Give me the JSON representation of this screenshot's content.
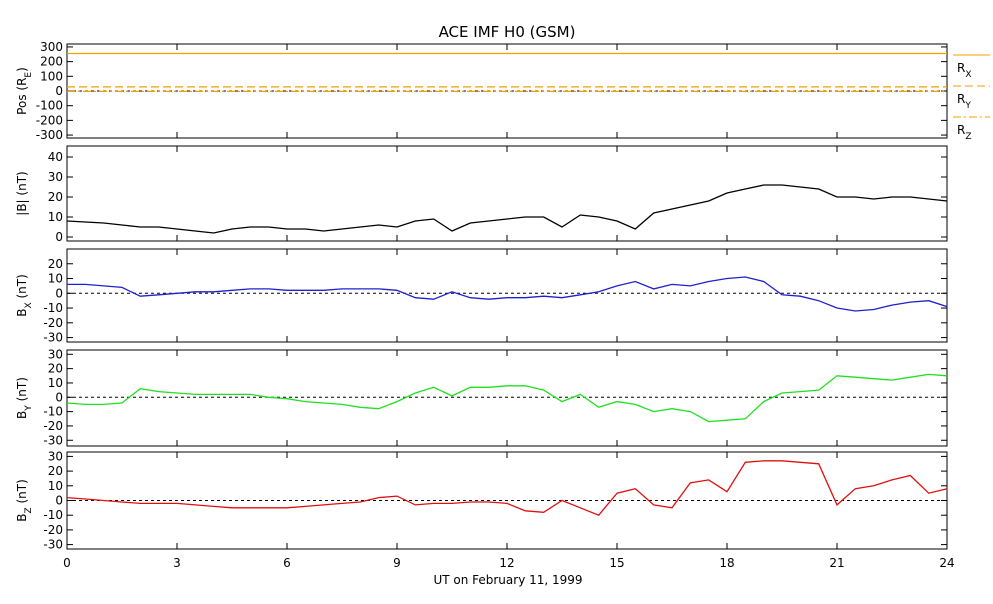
{
  "title": "ACE IMF H0 (GSM)",
  "xlabel": "UT on February 11, 1999",
  "chart_data": [
    {
      "type": "line",
      "ylabel": {
        "text": "Pos (R",
        "sub": "E",
        "unit": ")"
      },
      "xlim": [
        0,
        24
      ],
      "xticks": [
        0,
        3,
        6,
        9,
        12,
        15,
        18,
        21,
        24
      ],
      "ylim": [
        -320,
        320
      ],
      "yticks": [
        -300,
        -200,
        -100,
        0,
        100,
        200,
        300
      ],
      "zero_line": true,
      "legend": "right",
      "x": [
        0,
        24
      ],
      "series": [
        {
          "name": "R",
          "name_sub": "X",
          "color": "#f0a000",
          "style": "solid",
          "values": [
            255,
            255
          ]
        },
        {
          "name": "R",
          "name_sub": "Y",
          "color": "#f0a000",
          "style": "dashed",
          "values": [
            28,
            28
          ]
        },
        {
          "name": "R",
          "name_sub": "Z",
          "color": "#f0a000",
          "style": "dashdot",
          "values": [
            -3,
            -3
          ]
        }
      ]
    },
    {
      "type": "line",
      "ylabel": {
        "text": "|B| (nT)"
      },
      "xlim": [
        0,
        24
      ],
      "xticks": [
        0,
        3,
        6,
        9,
        12,
        15,
        18,
        21,
        24
      ],
      "ylim": [
        -2,
        45.5
      ],
      "yticks": [
        0,
        10,
        20,
        30,
        40
      ],
      "zero_line": false,
      "x": [
        0,
        0.5,
        1,
        1.5,
        2,
        2.5,
        3,
        3.5,
        4,
        4.5,
        5,
        5.5,
        6,
        6.5,
        7,
        7.5,
        8,
        8.5,
        9,
        9.5,
        10,
        10.5,
        11,
        11.5,
        12,
        12.5,
        13,
        13.5,
        14,
        14.5,
        15,
        15.5,
        16,
        16.5,
        17,
        17.5,
        18,
        18.5,
        19,
        19.5,
        20,
        20.5,
        21,
        21.5,
        22,
        22.5,
        23,
        23.5,
        24
      ],
      "series": [
        {
          "color": "#000000",
          "style": "solid",
          "values": [
            8,
            7.5,
            7,
            6,
            5,
            5,
            4,
            3,
            2,
            4,
            5,
            5,
            4,
            4,
            3,
            4,
            5,
            6,
            5,
            8,
            9,
            3,
            7,
            8,
            9,
            10,
            10,
            5,
            11,
            10,
            8,
            4,
            12,
            14,
            16,
            18,
            22,
            24,
            26,
            26,
            25,
            24,
            20,
            20,
            19,
            20,
            20,
            19,
            18
          ]
        }
      ]
    },
    {
      "type": "line",
      "ylabel": {
        "text": "B",
        "sub": "X",
        "unit": " (nT)"
      },
      "xlim": [
        0,
        24
      ],
      "xticks": [
        0,
        3,
        6,
        9,
        12,
        15,
        18,
        21,
        24
      ],
      "ylim": [
        -33,
        30
      ],
      "yticks": [
        -30,
        -20,
        -10,
        0,
        10,
        20
      ],
      "zero_line": true,
      "x": [
        0,
        0.5,
        1,
        1.5,
        2,
        2.5,
        3,
        3.5,
        4,
        4.5,
        5,
        5.5,
        6,
        6.5,
        7,
        7.5,
        8,
        8.5,
        9,
        9.5,
        10,
        10.5,
        11,
        11.5,
        12,
        12.5,
        13,
        13.5,
        14,
        14.5,
        15,
        15.5,
        16,
        16.5,
        17,
        17.5,
        18,
        18.5,
        19,
        19.5,
        20,
        20.5,
        21,
        21.5,
        22,
        22.5,
        23,
        23.5,
        24
      ],
      "series": [
        {
          "color": "#2020d0",
          "style": "solid",
          "values": [
            6,
            6,
            5,
            4,
            -2,
            -1,
            0,
            1,
            1,
            2,
            3,
            3,
            2,
            2,
            2,
            3,
            3,
            3,
            2,
            -3,
            -4,
            1,
            -3,
            -4,
            -3,
            -3,
            -2,
            -3,
            -1,
            1,
            5,
            8,
            3,
            6,
            5,
            8,
            10,
            11,
            8,
            -1,
            -2,
            -5,
            -10,
            -12,
            -11,
            -8,
            -6,
            -5,
            -9
          ]
        }
      ]
    },
    {
      "type": "line",
      "ylabel": {
        "text": "B",
        "sub": "Y",
        "unit": " (nT)"
      },
      "xlim": [
        0,
        24
      ],
      "xticks": [
        0,
        3,
        6,
        9,
        12,
        15,
        18,
        21,
        24
      ],
      "ylim": [
        -34,
        33
      ],
      "yticks": [
        -30,
        -20,
        -10,
        0,
        10,
        20,
        30
      ],
      "zero_line": true,
      "x": [
        0,
        0.5,
        1,
        1.5,
        2,
        2.5,
        3,
        3.5,
        4,
        4.5,
        5,
        5.5,
        6,
        6.5,
        7,
        7.5,
        8,
        8.5,
        9,
        9.5,
        10,
        10.5,
        11,
        11.5,
        12,
        12.5,
        13,
        13.5,
        14,
        14.5,
        15,
        15.5,
        16,
        16.5,
        17,
        17.5,
        18,
        18.5,
        19,
        19.5,
        20,
        20.5,
        21,
        21.5,
        22,
        22.5,
        23,
        23.5,
        24
      ],
      "series": [
        {
          "color": "#20e020",
          "style": "solid",
          "values": [
            -4,
            -5,
            -5,
            -4,
            6,
            4,
            3,
            2,
            2,
            2,
            2,
            0,
            -1,
            -3,
            -4,
            -5,
            -7,
            -8,
            -3,
            3,
            7,
            1,
            7,
            7,
            8,
            8,
            5,
            -3,
            2,
            -7,
            -3,
            -5,
            -10,
            -8,
            -10,
            -17,
            -16,
            -15,
            -3,
            3,
            4,
            5,
            15,
            14,
            13,
            12,
            14,
            16,
            15
          ]
        }
      ]
    },
    {
      "type": "line",
      "ylabel": {
        "text": "B",
        "sub": "Z",
        "unit": " (nT)"
      },
      "xlim": [
        0,
        24
      ],
      "xticks": [
        0,
        3,
        6,
        9,
        12,
        15,
        18,
        21,
        24
      ],
      "ylim": [
        -33,
        33
      ],
      "yticks": [
        -30,
        -20,
        -10,
        0,
        10,
        20,
        30
      ],
      "zero_line": true,
      "x": [
        0,
        0.5,
        1,
        1.5,
        2,
        2.5,
        3,
        3.5,
        4,
        4.5,
        5,
        5.5,
        6,
        6.5,
        7,
        7.5,
        8,
        8.5,
        9,
        9.5,
        10,
        10.5,
        11,
        11.5,
        12,
        12.5,
        13,
        13.5,
        14,
        14.5,
        15,
        15.5,
        16,
        16.5,
        17,
        17.5,
        18,
        18.5,
        19,
        19.5,
        20,
        20.5,
        21,
        21.5,
        22,
        22.5,
        23,
        23.5,
        24
      ],
      "series": [
        {
          "color": "#e01010",
          "style": "solid",
          "values": [
            2,
            1,
            0,
            -1,
            -2,
            -2,
            -2,
            -3,
            -4,
            -5,
            -5,
            -5,
            -5,
            -4,
            -3,
            -2,
            -1,
            2,
            3,
            -3,
            -2,
            -2,
            -1,
            -1,
            -2,
            -7,
            -8,
            0,
            -5,
            -10,
            5,
            8,
            -3,
            -5,
            12,
            14,
            6,
            26,
            27,
            27,
            26,
            25,
            -3,
            8,
            10,
            14,
            17,
            5,
            8
          ]
        }
      ]
    }
  ]
}
